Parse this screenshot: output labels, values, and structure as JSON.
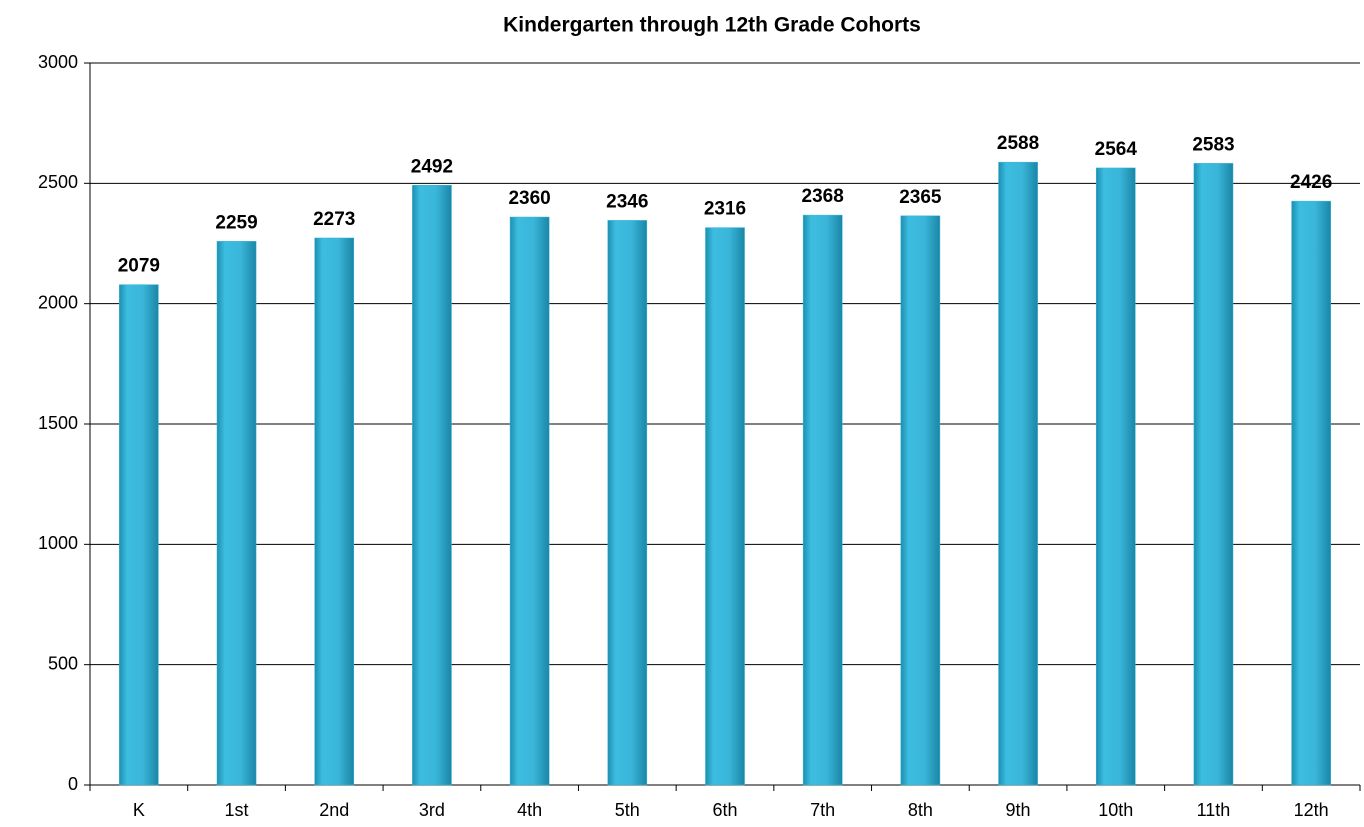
{
  "chart_data": {
    "type": "bar",
    "title": "Kindergarten through 12th Grade Cohorts",
    "categories": [
      "K",
      "1st",
      "2nd",
      "3rd",
      "4th",
      "5th",
      "6th",
      "7th",
      "8th",
      "9th",
      "10th",
      "11th",
      "12th"
    ],
    "values": [
      2079,
      2259,
      2273,
      2492,
      2360,
      2346,
      2316,
      2368,
      2365,
      2588,
      2564,
      2583,
      2426
    ],
    "color": "#36b4d8",
    "ylim": [
      0,
      3000
    ],
    "yticks": [
      0,
      500,
      1000,
      1500,
      2000,
      2500,
      3000
    ],
    "grid": true
  }
}
